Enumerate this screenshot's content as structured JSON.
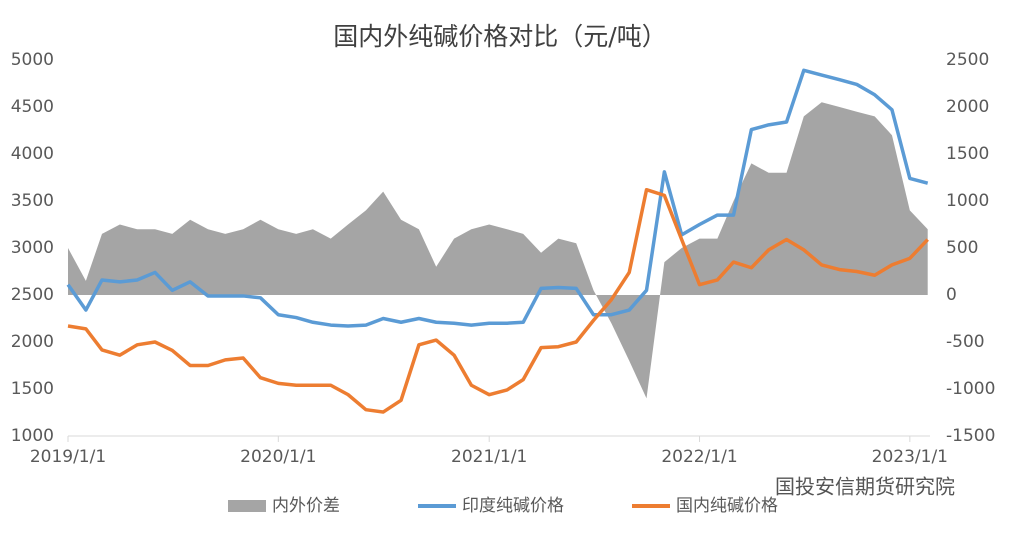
{
  "chart_data": {
    "type": "combo",
    "title": "国内外纯碱价格对比（元/吨）",
    "watermark": "国投安信期货研究院",
    "x": [
      "2019/1/1",
      "2019/2/1",
      "2019/3/1",
      "2019/4/1",
      "2019/5/1",
      "2019/6/1",
      "2019/7/1",
      "2019/8/1",
      "2019/9/1",
      "2019/10/1",
      "2019/11/1",
      "2019/12/1",
      "2020/1/1",
      "2020/2/1",
      "2020/3/1",
      "2020/4/1",
      "2020/5/1",
      "2020/6/1",
      "2020/7/1",
      "2020/8/1",
      "2020/9/1",
      "2020/10/1",
      "2020/11/1",
      "2020/12/1",
      "2021/1/1",
      "2021/2/1",
      "2021/3/1",
      "2021/4/1",
      "2021/5/1",
      "2021/6/1",
      "2021/7/1",
      "2021/8/1",
      "2021/9/1",
      "2021/10/1",
      "2021/11/1",
      "2021/12/1",
      "2022/1/1",
      "2022/2/1",
      "2022/3/1",
      "2022/4/1",
      "2022/5/1",
      "2022/6/1",
      "2022/7/1",
      "2022/8/1",
      "2022/9/1",
      "2022/10/1",
      "2022/11/1",
      "2022/12/1",
      "2023/1/1",
      "2023/2/1"
    ],
    "xlim": [
      "2019/1/1",
      "2023/2/5"
    ],
    "xticks": [
      "2019/1/1",
      "2020/1/1",
      "2021/1/1",
      "2022/1/1",
      "2023/1/1"
    ],
    "ylim": [
      1000,
      5000
    ],
    "yticks": [
      1000,
      1500,
      2000,
      2500,
      3000,
      3500,
      4000,
      4500,
      5000
    ],
    "y2lim": [
      -1500,
      2500
    ],
    "y2ticks": [
      -1500,
      -1000,
      -500,
      0,
      500,
      1000,
      1500,
      2000,
      2500
    ],
    "series": [
      {
        "name": "内外价差",
        "type": "area",
        "axis": "y2",
        "color": "#a5a5a5",
        "values": [
          500,
          150,
          650,
          750,
          700,
          700,
          650,
          800,
          700,
          650,
          700,
          800,
          700,
          650,
          700,
          600,
          750,
          900,
          1100,
          800,
          700,
          300,
          600,
          700,
          750,
          700,
          650,
          450,
          600,
          550,
          50,
          -300,
          -700,
          -1100,
          350,
          500,
          600,
          600,
          1000,
          1400,
          1300,
          1300,
          1900,
          2050,
          2000,
          1950,
          1900,
          1700,
          900,
          700
        ]
      },
      {
        "name": "印度纯碱价格",
        "type": "line",
        "axis": "y",
        "color": "#5b9bd5",
        "values": [
          2610,
          2340,
          2660,
          2640,
          2660,
          2740,
          2550,
          2640,
          2490,
          2490,
          2490,
          2470,
          2290,
          2260,
          2210,
          2180,
          2170,
          2180,
          2250,
          2210,
          2250,
          2210,
          2200,
          2180,
          2200,
          2200,
          2210,
          2570,
          2580,
          2570,
          2290,
          2290,
          2340,
          2550,
          3810,
          3140,
          3250,
          3350,
          3350,
          4260,
          4310,
          4340,
          4890,
          4840,
          4790,
          4740,
          4630,
          4470,
          3740,
          3690
        ]
      },
      {
        "name": "国内纯碱价格",
        "type": "line",
        "axis": "y",
        "color": "#ed7d31",
        "values": [
          2170,
          2140,
          1915,
          1860,
          1970,
          2000,
          1910,
          1750,
          1750,
          1810,
          1830,
          1620,
          1560,
          1540,
          1540,
          1540,
          1440,
          1280,
          1255,
          1380,
          1970,
          2020,
          1860,
          1540,
          1440,
          1490,
          1600,
          1940,
          1950,
          2000,
          2230,
          2450,
          2740,
          3620,
          3560,
          3090,
          2610,
          2660,
          2850,
          2790,
          2980,
          3090,
          2980,
          2820,
          2770,
          2750,
          2710,
          2820,
          2890,
          3090
        ]
      }
    ]
  }
}
